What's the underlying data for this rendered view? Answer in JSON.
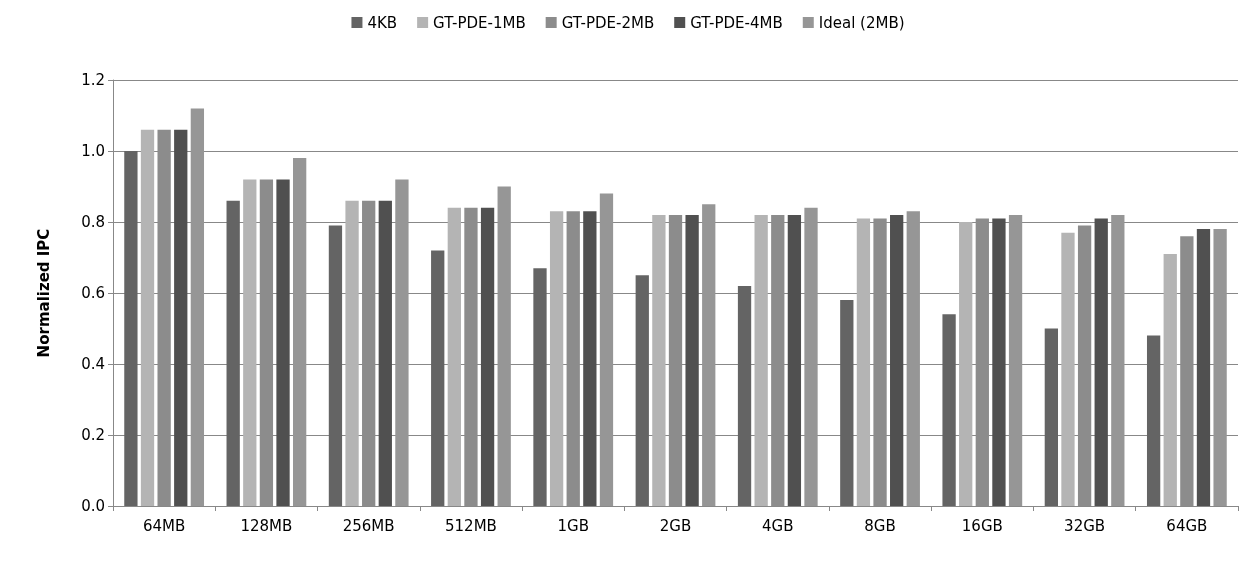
{
  "chart_data": {
    "type": "bar",
    "ylabel": "Normalized IPC",
    "categories": [
      "64MB",
      "128MB",
      "256MB",
      "512MB",
      "1GB",
      "2GB",
      "4GB",
      "8GB",
      "16GB",
      "32GB",
      "64GB"
    ],
    "series": [
      {
        "name": "4KB",
        "color": "#646464",
        "values": [
          1.0,
          0.86,
          0.79,
          0.72,
          0.67,
          0.65,
          0.62,
          0.58,
          0.54,
          0.5,
          0.48
        ]
      },
      {
        "name": "GT-PDE-1MB",
        "color": "#b4b4b4",
        "values": [
          1.06,
          0.92,
          0.86,
          0.84,
          0.83,
          0.82,
          0.82,
          0.81,
          0.8,
          0.77,
          0.71
        ]
      },
      {
        "name": "GT-PDE-2MB",
        "color": "#8c8c8c",
        "values": [
          1.06,
          0.92,
          0.86,
          0.84,
          0.83,
          0.82,
          0.82,
          0.81,
          0.81,
          0.79,
          0.76
        ]
      },
      {
        "name": "GT-PDE-4MB",
        "color": "#505050",
        "values": [
          1.06,
          0.92,
          0.86,
          0.84,
          0.83,
          0.82,
          0.82,
          0.82,
          0.81,
          0.81,
          0.78
        ]
      },
      {
        "name": "Ideal (2MB)",
        "color": "#969696",
        "values": [
          1.12,
          0.98,
          0.92,
          0.9,
          0.88,
          0.85,
          0.84,
          0.83,
          0.82,
          0.82,
          0.78
        ]
      }
    ],
    "ylim": [
      0,
      1.2
    ],
    "yticks": [
      {
        "value": 0,
        "label": "0.0"
      },
      {
        "value": 0.2,
        "label": "0.2"
      },
      {
        "value": 0.4,
        "label": "0.4"
      },
      {
        "value": 0.6,
        "label": "0.6"
      },
      {
        "value": 0.8,
        "label": "0.8"
      },
      {
        "value": 1,
        "label": "1.0"
      },
      {
        "value": 1.2,
        "label": "1.2"
      }
    ],
    "grid": "y",
    "legend": "top"
  }
}
